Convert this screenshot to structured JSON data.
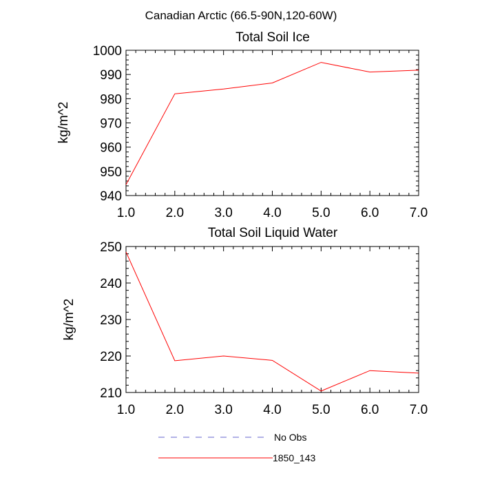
{
  "figure_title": "Canadian Arctic (66.5-90N,120-60W)",
  "chart_data": [
    {
      "type": "line",
      "title": "Total Soil Ice",
      "xlabel": "",
      "ylabel": "kg/m^2",
      "x": [
        1.0,
        2.0,
        3.0,
        4.0,
        5.0,
        6.0,
        7.0
      ],
      "xlim": [
        1.0,
        7.0
      ],
      "ylim": [
        940,
        1000
      ],
      "xticks": [
        "1.0",
        "2.0",
        "3.0",
        "4.0",
        "5.0",
        "6.0",
        "7.0"
      ],
      "yticks": [
        "940",
        "950",
        "960",
        "970",
        "980",
        "990",
        "1000"
      ],
      "series": [
        {
          "name": "1850_143",
          "color": "#ff0000",
          "values": [
            944.5,
            982.0,
            984.0,
            986.5,
            995.0,
            991.0,
            991.8
          ]
        }
      ]
    },
    {
      "type": "line",
      "title": "Total Soil Liquid Water",
      "xlabel": "",
      "ylabel": "kg/m^2",
      "x": [
        1.0,
        2.0,
        3.0,
        4.0,
        5.0,
        6.0,
        7.0
      ],
      "xlim": [
        1.0,
        7.0
      ],
      "ylim": [
        210,
        250
      ],
      "xticks": [
        "1.0",
        "2.0",
        "3.0",
        "4.0",
        "5.0",
        "6.0",
        "7.0"
      ],
      "yticks": [
        "210",
        "220",
        "230",
        "240",
        "250"
      ],
      "series": [
        {
          "name": "1850_143",
          "color": "#ff0000",
          "values": [
            248.5,
            218.7,
            220.0,
            218.8,
            210.4,
            216.0,
            215.3
          ]
        }
      ]
    }
  ],
  "legend": [
    {
      "label": "No Obs",
      "color": "#6666cc",
      "style": "dashed"
    },
    {
      "label": "1850_143",
      "color": "#ff0000",
      "style": "solid"
    }
  ]
}
